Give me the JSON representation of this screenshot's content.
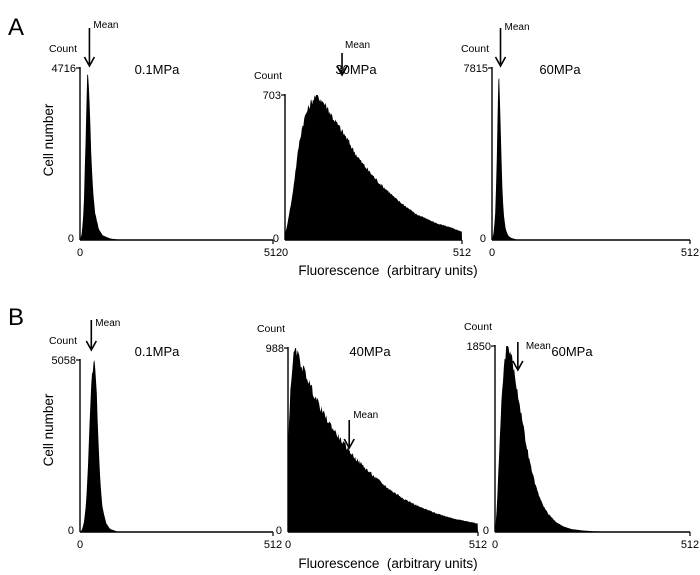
{
  "rows": [
    {
      "letter": "A",
      "ylabel": "Cell number",
      "xlabel": "Fluorescence  (arbitrary units)",
      "panels": [
        {
          "condition": "0.1MPa",
          "count_label": "Count",
          "count_max": "4716",
          "y_zero": "0",
          "x_min": "0",
          "x_max": "512",
          "mean_label": "Mean"
        },
        {
          "condition": "30MPa",
          "count_label": "Count",
          "count_max": "703",
          "y_zero": "0",
          "x_min": "0",
          "x_max": "512",
          "mean_label": "Mean"
        },
        {
          "condition": "60MPa",
          "count_label": "Count",
          "count_max": "7815",
          "y_zero": "0",
          "x_min": "0",
          "x_max": "512",
          "mean_label": "Mean"
        }
      ]
    },
    {
      "letter": "B",
      "ylabel": "Cell number",
      "xlabel": "Fluorescence  (arbitrary units)",
      "panels": [
        {
          "condition": "0.1MPa",
          "count_label": "Count",
          "count_max": "5058",
          "y_zero": "0",
          "x_min": "0",
          "x_max": "512",
          "mean_label": "Mean"
        },
        {
          "condition": "40MPa",
          "count_label": "Count",
          "count_max": "988",
          "y_zero": "0",
          "x_min": "0",
          "x_max": "512",
          "mean_label": "Mean"
        },
        {
          "condition": "60MPa",
          "count_label": "Count",
          "count_max": "1850",
          "y_zero": "0",
          "x_min": "0",
          "x_max": "512",
          "mean_label": "Mean"
        }
      ]
    }
  ],
  "chart_data": [
    {
      "type": "area",
      "panel": "A",
      "title": "0.1MPa",
      "xlabel": "Fluorescence (arbitrary units)",
      "ylabel": "Cell number",
      "xlim": [
        0,
        512
      ],
      "ylim": [
        0,
        4716
      ],
      "mean_x": 25,
      "x": [
        0,
        5,
        10,
        15,
        18,
        20,
        22,
        25,
        28,
        30,
        35,
        40,
        50,
        60,
        80,
        100,
        150,
        200,
        300,
        512
      ],
      "values": [
        0,
        180,
        900,
        2800,
        4100,
        4716,
        4500,
        3800,
        2900,
        2300,
        1300,
        750,
        300,
        130,
        40,
        15,
        0,
        0,
        0,
        0
      ]
    },
    {
      "type": "area",
      "panel": "A",
      "title": "30MPa",
      "xlabel": "Fluorescence (arbitrary units)",
      "ylabel": "Cell number",
      "xlim": [
        0,
        512
      ],
      "ylim": [
        0,
        703
      ],
      "mean_x": 165,
      "x": [
        0,
        5,
        10,
        20,
        30,
        40,
        50,
        60,
        70,
        80,
        90,
        100,
        110,
        120,
        130,
        140,
        150,
        160,
        170,
        180,
        200,
        220,
        240,
        260,
        280,
        300,
        320,
        340,
        360,
        380,
        400,
        420,
        440,
        460,
        480,
        500,
        512
      ],
      "values": [
        30,
        60,
        110,
        200,
        330,
        460,
        550,
        610,
        650,
        680,
        703,
        690,
        670,
        650,
        620,
        590,
        565,
        540,
        515,
        490,
        430,
        380,
        340,
        300,
        265,
        235,
        200,
        175,
        150,
        125,
        110,
        95,
        80,
        70,
        60,
        48,
        40
      ]
    },
    {
      "type": "area",
      "panel": "A",
      "title": "60MPa",
      "xlabel": "Fluorescence (arbitrary units)",
      "ylabel": "Cell number",
      "xlim": [
        0,
        512
      ],
      "ylim": [
        0,
        7815
      ],
      "mean_x": 22,
      "x": [
        0,
        4,
        8,
        12,
        15,
        17,
        19,
        21,
        23,
        25,
        28,
        32,
        36,
        42,
        50,
        60,
        70,
        80,
        512
      ],
      "values": [
        0,
        300,
        1100,
        3300,
        6200,
        7815,
        7400,
        6200,
        4600,
        3300,
        1800,
        900,
        450,
        200,
        90,
        40,
        15,
        0,
        0
      ]
    },
    {
      "type": "area",
      "panel": "B",
      "title": "0.1MPa",
      "xlabel": "Fluorescence (arbitrary units)",
      "ylabel": "Cell number",
      "xlim": [
        0,
        512
      ],
      "ylim": [
        0,
        5058
      ],
      "mean_x": 30,
      "x": [
        0,
        5,
        10,
        15,
        20,
        25,
        30,
        35,
        38,
        42,
        46,
        50,
        55,
        60,
        70,
        80,
        100,
        512
      ],
      "values": [
        0,
        60,
        250,
        700,
        1600,
        3100,
        4300,
        4900,
        5058,
        4600,
        3600,
        2400,
        1300,
        700,
        250,
        90,
        10,
        0
      ]
    },
    {
      "type": "area",
      "panel": "B",
      "title": "40MPa",
      "xlabel": "Fluorescence (arbitrary units)",
      "ylabel": "Cell number",
      "xlim": [
        0,
        512
      ],
      "ylim": [
        0,
        988
      ],
      "mean_x": 165,
      "x": [
        0,
        5,
        10,
        15,
        20,
        30,
        40,
        50,
        60,
        70,
        80,
        90,
        100,
        120,
        140,
        160,
        180,
        200,
        220,
        240,
        260,
        280,
        300,
        320,
        340,
        360,
        380,
        400,
        420,
        440,
        460,
        480,
        500,
        512
      ],
      "values": [
        450,
        700,
        860,
        940,
        988,
        930,
        880,
        840,
        790,
        740,
        700,
        660,
        620,
        560,
        500,
        450,
        400,
        360,
        320,
        285,
        250,
        220,
        195,
        170,
        150,
        130,
        115,
        100,
        88,
        76,
        66,
        58,
        50,
        45
      ]
    },
    {
      "type": "area",
      "panel": "B",
      "title": "60MPa",
      "xlabel": "Fluorescence (arbitrary units)",
      "ylabel": "Cell number",
      "xlim": [
        0,
        512
      ],
      "ylim": [
        0,
        1850
      ],
      "mean_x": 60,
      "x": [
        0,
        5,
        10,
        15,
        20,
        25,
        30,
        35,
        40,
        45,
        50,
        60,
        70,
        80,
        90,
        100,
        110,
        120,
        130,
        140,
        160,
        180,
        200,
        230,
        260,
        300,
        512
      ],
      "values": [
        0,
        250,
        700,
        1150,
        1500,
        1700,
        1820,
        1850,
        1800,
        1720,
        1600,
        1380,
        1150,
        920,
        720,
        560,
        420,
        320,
        240,
        180,
        100,
        55,
        30,
        15,
        7,
        3,
        0
      ]
    }
  ]
}
